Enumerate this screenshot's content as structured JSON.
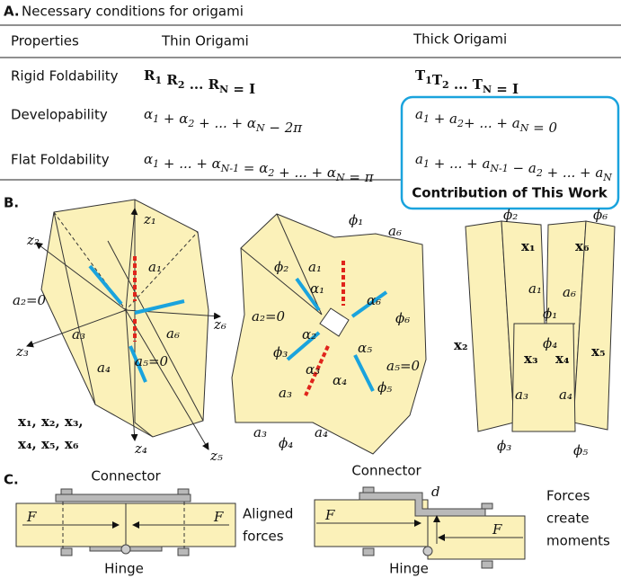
{
  "table": {
    "panel": "A.",
    "title": "Necessary conditions for origami",
    "header": [
      "Properties",
      "Thin Origami",
      "Thick Origami"
    ],
    "rows": [
      {
        "property": "Rigid Foldability",
        "thin": [
          {
            "t": "R",
            "s": "1"
          },
          {
            "t": " R",
            "s": "2"
          },
          {
            "t": " ... R",
            "s": "N"
          },
          {
            "t": " = I"
          }
        ],
        "thick": [
          {
            "t": "T",
            "s": "1"
          },
          {
            "t": "T",
            "s": "2"
          },
          {
            "t": " ... T",
            "s": "N"
          },
          {
            "t": " = I"
          }
        ]
      },
      {
        "property": "Developability",
        "thin": [
          {
            "t": "α",
            "s": "1"
          },
          {
            "t": " + α",
            "s": "2"
          },
          {
            "t": " + ... + α",
            "s": "N"
          },
          {
            "t": " − 2π"
          }
        ],
        "thick": [
          {
            "t": "a",
            "s": "1"
          },
          {
            "t": " + a",
            "s": "2"
          },
          {
            "t": "+ ... + a",
            "s": "N"
          },
          {
            "t": " = 0"
          }
        ]
      },
      {
        "property": "Flat Foldability",
        "thin": [
          {
            "t": "α",
            "s": "1"
          },
          {
            "t": " + ... + α",
            "s": "N-1"
          },
          {
            "t": " = α",
            "s": "2"
          },
          {
            "t": " + ... + α",
            "s": "N"
          },
          {
            "t": " = π"
          }
        ],
        "thick": [
          {
            "t": "a",
            "s": "1"
          },
          {
            "t": " + ... + a",
            "s": "N-1"
          },
          {
            "t": " − a",
            "s": "2"
          },
          {
            "t": " + ... + a",
            "s": "N"
          }
        ]
      }
    ],
    "highlight": "Contribution of This Work"
  },
  "figure_b": {
    "panel": "B.",
    "labels": [
      "z₁",
      "z₂",
      "z₆",
      "z₃",
      "z₄",
      "z₅",
      "a₁",
      "a₂=0",
      "a₃",
      "a₆",
      "a₄",
      "a₅=0",
      "x₁, x₂, x₃,",
      "x₄, x₅, x₆",
      "ϕ₁",
      "a₆",
      "ϕ₂",
      "a₁",
      "α₁",
      "a₂=0",
      "α₂",
      "α₆",
      "ϕ₆",
      "α₅",
      "a₅=0",
      "ϕ₃",
      "a₃",
      "α₃",
      "α₄",
      "ϕ₅",
      "a₃",
      "ϕ₄",
      "a₄",
      "ϕ₂",
      "ϕ₆",
      "x₁",
      "x₆",
      "a₁",
      "a₆",
      "ϕ₁",
      "ϕ₄",
      "x₂",
      "x₃",
      "x₄",
      "x₅",
      "a₃",
      "a₄",
      "ϕ₃",
      "ϕ₅"
    ]
  },
  "figure_c": {
    "panel": "C.",
    "labels": [
      "Connector",
      "Hinge",
      "Aligned",
      "forces",
      "F",
      "F",
      "Connector",
      "d",
      "Forces",
      "create",
      "moments",
      "Hinge",
      "F",
      "F"
    ]
  }
}
